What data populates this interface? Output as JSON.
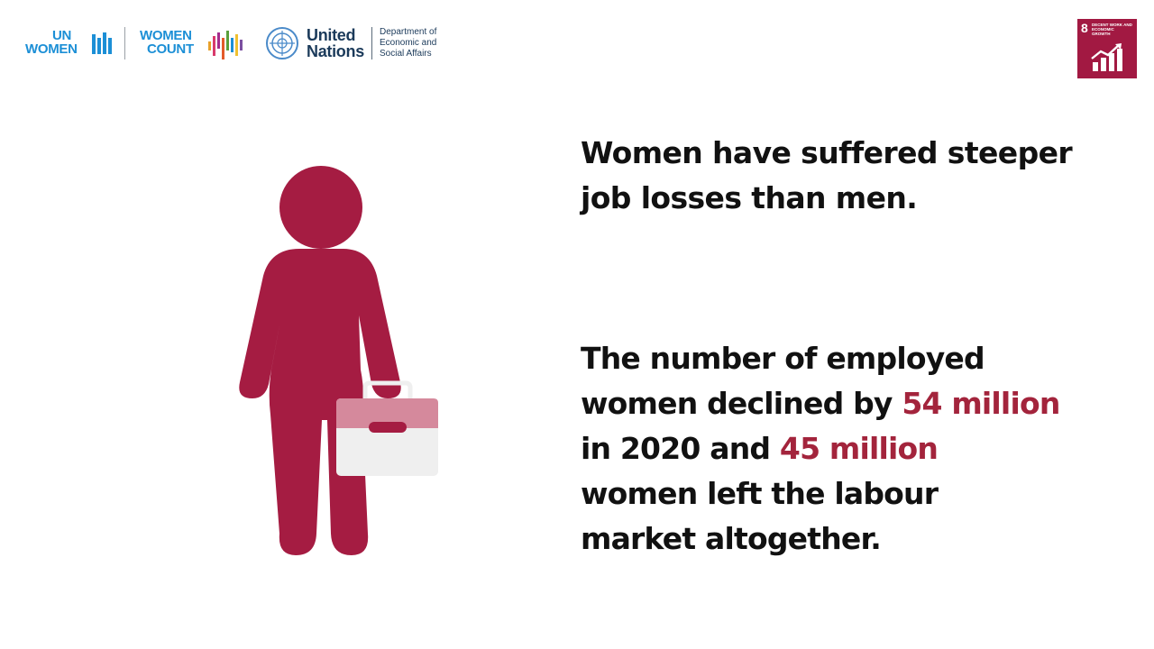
{
  "header": {
    "unwomen": {
      "line1": "UN",
      "line2": "WOMEN"
    },
    "womencount": {
      "line1": "WOMEN",
      "line2": "COUNT"
    },
    "un": {
      "name_line1": "United",
      "name_line2": "Nations",
      "dept_line1": "Department of",
      "dept_line2": "Economic and",
      "dept_line3": "Social Affairs"
    },
    "sdg": {
      "number": "8",
      "label": "DECENT WORK AND ECONOMIC GROWTH",
      "color": "#a21942"
    }
  },
  "colors": {
    "figure": "#a51c42",
    "highlight": "#a3243c",
    "briefcase_top": "#d5899c",
    "briefcase_body": "#efefef"
  },
  "icons": {
    "figure": "woman-with-briefcase-icon",
    "sdg": "growth-chart-icon"
  },
  "content": {
    "headline_line1": "Women have suffered steeper",
    "headline_line2": "job losses than men.",
    "body": {
      "l1": "The number of employed",
      "l2a": "women declined by ",
      "l2b": "54 million",
      "l3a": "in 2020 and ",
      "l3b": "45 million",
      "l4": "women left the labour",
      "l5": "market altogether."
    }
  }
}
